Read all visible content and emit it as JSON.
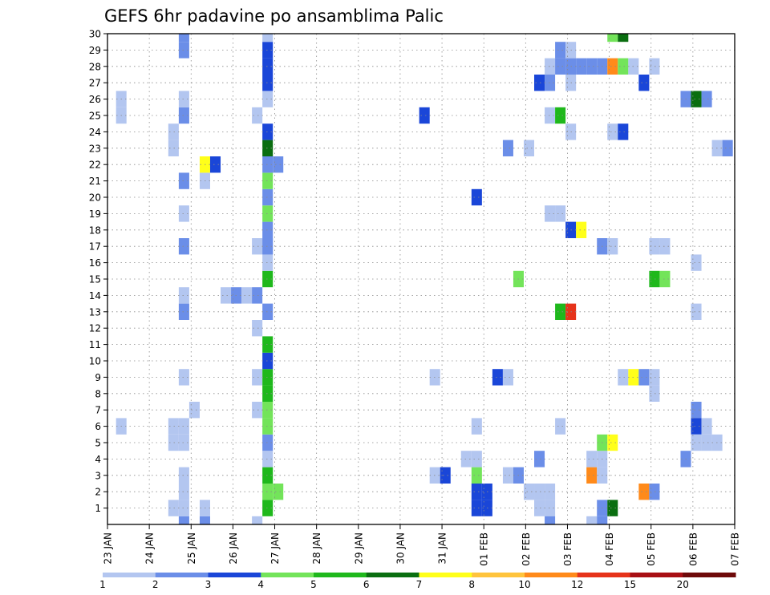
{
  "chart_data": {
    "type": "heatmap",
    "title": "GEFS 6hr padavine po ansamblima Palic",
    "x_tick_labels": [
      "23 JAN",
      "24 JAN",
      "25 JAN",
      "26 JAN",
      "27 JAN",
      "28 JAN",
      "29 JAN",
      "30 JAN",
      "31 JAN",
      "01 FEB",
      "02 FEB",
      "03 FEB",
      "04 FEB",
      "05 FEB",
      "06 FEB",
      "07 FEB"
    ],
    "x_range_days": [
      0,
      15
    ],
    "y_tick_labels": [
      "1",
      "2",
      "3",
      "4",
      "5",
      "6",
      "7",
      "8",
      "9",
      "10",
      "11",
      "12",
      "13",
      "14",
      "15",
      "16",
      "17",
      "18",
      "19",
      "20",
      "21",
      "22",
      "23",
      "24",
      "25",
      "26",
      "27",
      "28",
      "29",
      "30"
    ],
    "y_range": [
      0,
      30
    ],
    "grid": true,
    "colorbar": {
      "levels": [
        "1",
        "2",
        "3",
        "4",
        "5",
        "6",
        "7",
        "8",
        "10",
        "12",
        "15",
        "20"
      ],
      "colors": [
        "#b3c6f0",
        "#6b8ee8",
        "#1a46d8",
        "#73e45a",
        "#1fb81c",
        "#0a6e10",
        "#ffff1a",
        "#ffc43d",
        "#ff8a1a",
        "#e6331a",
        "#a80f14",
        "#6e0a0a"
      ]
    },
    "cells": [
      {
        "d": 1.83,
        "m": 0,
        "c": 2
      },
      {
        "d": 1.83,
        "m": 1,
        "c": 1
      },
      {
        "d": 1.83,
        "m": 2,
        "c": 1
      },
      {
        "d": 1.83,
        "m": 3,
        "c": 1
      },
      {
        "d": 1.83,
        "m": 5,
        "c": 1
      },
      {
        "d": 1.83,
        "m": 6,
        "c": 1
      },
      {
        "d": 1.83,
        "m": 9,
        "c": 1
      },
      {
        "d": 1.83,
        "m": 13,
        "c": 2
      },
      {
        "d": 1.83,
        "m": 14,
        "c": 1
      },
      {
        "d": 1.83,
        "m": 17,
        "c": 2
      },
      {
        "d": 1.83,
        "m": 19,
        "c": 1
      },
      {
        "d": 1.83,
        "m": 21,
        "c": 2
      },
      {
        "d": 1.83,
        "m": 25,
        "c": 2
      },
      {
        "d": 1.83,
        "m": 26,
        "c": 1
      },
      {
        "d": 1.83,
        "m": 29,
        "c": 2
      },
      {
        "d": 1.83,
        "m": 30,
        "c": 2
      },
      {
        "d": 1.58,
        "m": 1,
        "c": 1
      },
      {
        "d": 1.58,
        "m": 5,
        "c": 1
      },
      {
        "d": 1.58,
        "m": 6,
        "c": 1
      },
      {
        "d": 1.58,
        "m": 23,
        "c": 1
      },
      {
        "d": 1.58,
        "m": 24,
        "c": 1
      },
      {
        "d": 0.33,
        "m": 6,
        "c": 1
      },
      {
        "d": 0.33,
        "m": 25,
        "c": 1
      },
      {
        "d": 0.33,
        "m": 26,
        "c": 1
      },
      {
        "d": 2.08,
        "m": 7,
        "c": 1
      },
      {
        "d": 2.33,
        "m": 0,
        "c": 2
      },
      {
        "d": 2.33,
        "m": 1,
        "c": 1
      },
      {
        "d": 2.33,
        "m": 21,
        "c": 1
      },
      {
        "d": 2.33,
        "m": 22,
        "c": 7
      },
      {
        "d": 2.58,
        "m": 22,
        "c": 3
      },
      {
        "d": 2.83,
        "m": 14,
        "c": 1
      },
      {
        "d": 3.08,
        "m": 14,
        "c": 2
      },
      {
        "d": 3.33,
        "m": 14,
        "c": 1
      },
      {
        "d": 3.58,
        "m": 14,
        "c": 2
      },
      {
        "d": 3.58,
        "m": 0,
        "c": 1
      },
      {
        "d": 3.58,
        "m": 7,
        "c": 1
      },
      {
        "d": 3.58,
        "m": 9,
        "c": 1
      },
      {
        "d": 3.58,
        "m": 12,
        "c": 1
      },
      {
        "d": 3.58,
        "m": 17,
        "c": 1
      },
      {
        "d": 3.58,
        "m": 25,
        "c": 1
      },
      {
        "d": 3.83,
        "m": 17,
        "c": 1
      },
      {
        "d": 4.08,
        "m": 22,
        "c": 2
      },
      {
        "d": 3.83,
        "m": 1,
        "c": 5
      },
      {
        "d": 3.83,
        "m": 2,
        "c": 4
      },
      {
        "d": 3.83,
        "m": 3,
        "c": 5
      },
      {
        "d": 3.83,
        "m": 4,
        "c": 1
      },
      {
        "d": 3.83,
        "m": 5,
        "c": 2
      },
      {
        "d": 3.83,
        "m": 6,
        "c": 4
      },
      {
        "d": 3.83,
        "m": 7,
        "c": 4
      },
      {
        "d": 3.83,
        "m": 8,
        "c": 5
      },
      {
        "d": 3.83,
        "m": 9,
        "c": 5
      },
      {
        "d": 3.83,
        "m": 10,
        "c": 3
      },
      {
        "d": 3.83,
        "m": 11,
        "c": 5
      },
      {
        "d": 3.83,
        "m": 13,
        "c": 2
      },
      {
        "d": 3.83,
        "m": 15,
        "c": 5
      },
      {
        "d": 3.83,
        "m": 16,
        "c": 1
      },
      {
        "d": 3.83,
        "m": 17,
        "c": 2
      },
      {
        "d": 3.83,
        "m": 18,
        "c": 2
      },
      {
        "d": 3.83,
        "m": 19,
        "c": 4
      },
      {
        "d": 3.83,
        "m": 20,
        "c": 2
      },
      {
        "d": 3.83,
        "m": 21,
        "c": 4
      },
      {
        "d": 3.83,
        "m": 22,
        "c": 2
      },
      {
        "d": 3.83,
        "m": 23,
        "c": 6
      },
      {
        "d": 3.83,
        "m": 24,
        "c": 3
      },
      {
        "d": 3.83,
        "m": 26,
        "c": 1
      },
      {
        "d": 3.83,
        "m": 27,
        "c": 3
      },
      {
        "d": 3.83,
        "m": 28,
        "c": 3
      },
      {
        "d": 3.83,
        "m": 29,
        "c": 3
      },
      {
        "d": 3.83,
        "m": 30,
        "c": 1
      },
      {
        "d": 4.08,
        "m": 2,
        "c": 4
      },
      {
        "d": 7.83,
        "m": 9,
        "c": 1
      },
      {
        "d": 7.83,
        "m": 3,
        "c": 1
      },
      {
        "d": 8.08,
        "m": 3,
        "c": 3
      },
      {
        "d": 7.58,
        "m": 25,
        "c": 3
      },
      {
        "d": 8.58,
        "m": 4,
        "c": 1
      },
      {
        "d": 8.83,
        "m": 1,
        "c": 3
      },
      {
        "d": 8.83,
        "m": 2,
        "c": 3
      },
      {
        "d": 8.83,
        "m": 3,
        "c": 4
      },
      {
        "d": 8.83,
        "m": 6,
        "c": 1
      },
      {
        "d": 8.83,
        "m": 4,
        "c": 1
      },
      {
        "d": 8.83,
        "m": 20,
        "c": 3
      },
      {
        "d": 9.08,
        "m": 1,
        "c": 3
      },
      {
        "d": 9.08,
        "m": 2,
        "c": 3
      },
      {
        "d": 9.33,
        "m": 9,
        "c": 3
      },
      {
        "d": 9.58,
        "m": 9,
        "c": 1
      },
      {
        "d": 9.58,
        "m": 3,
        "c": 1
      },
      {
        "d": 9.83,
        "m": 3,
        "c": 2
      },
      {
        "d": 9.83,
        "m": 15,
        "c": 4
      },
      {
        "d": 9.58,
        "m": 23,
        "c": 2
      },
      {
        "d": 10.08,
        "m": 23,
        "c": 1
      },
      {
        "d": 10.08,
        "m": 2,
        "c": 1
      },
      {
        "d": 10.33,
        "m": 2,
        "c": 1
      },
      {
        "d": 10.58,
        "m": 2,
        "c": 1
      },
      {
        "d": 10.33,
        "m": 1,
        "c": 1
      },
      {
        "d": 10.58,
        "m": 1,
        "c": 1
      },
      {
        "d": 10.58,
        "m": 0,
        "c": 2
      },
      {
        "d": 10.33,
        "m": 4,
        "c": 2
      },
      {
        "d": 10.58,
        "m": 19,
        "c": 1
      },
      {
        "d": 10.83,
        "m": 19,
        "c": 1
      },
      {
        "d": 10.58,
        "m": 25,
        "c": 1
      },
      {
        "d": 10.83,
        "m": 25,
        "c": 5
      },
      {
        "d": 10.83,
        "m": 6,
        "c": 1
      },
      {
        "d": 10.83,
        "m": 13,
        "c": 5
      },
      {
        "d": 11.08,
        "m": 13,
        "c": 10
      },
      {
        "d": 10.33,
        "m": 27,
        "c": 3
      },
      {
        "d": 10.58,
        "m": 27,
        "c": 2
      },
      {
        "d": 11.08,
        "m": 27,
        "c": 1
      },
      {
        "d": 10.58,
        "m": 28,
        "c": 1
      },
      {
        "d": 10.83,
        "m": 28,
        "c": 2
      },
      {
        "d": 11.08,
        "m": 28,
        "c": 2
      },
      {
        "d": 11.33,
        "m": 28,
        "c": 2
      },
      {
        "d": 11.58,
        "m": 28,
        "c": 2
      },
      {
        "d": 11.83,
        "m": 28,
        "c": 2
      },
      {
        "d": 12.08,
        "m": 28,
        "c": 9
      },
      {
        "d": 12.33,
        "m": 28,
        "c": 4
      },
      {
        "d": 12.58,
        "m": 28,
        "c": 1
      },
      {
        "d": 13.08,
        "m": 28,
        "c": 1
      },
      {
        "d": 10.83,
        "m": 29,
        "c": 2
      },
      {
        "d": 11.08,
        "m": 29,
        "c": 1
      },
      {
        "d": 11.08,
        "m": 24,
        "c": 1
      },
      {
        "d": 11.08,
        "m": 18,
        "c": 3
      },
      {
        "d": 11.33,
        "m": 18,
        "c": 7
      },
      {
        "d": 11.58,
        "m": 0,
        "c": 1
      },
      {
        "d": 11.83,
        "m": 0,
        "c": 2
      },
      {
        "d": 11.83,
        "m": 1,
        "c": 2
      },
      {
        "d": 12.08,
        "m": 1,
        "c": 6
      },
      {
        "d": 11.58,
        "m": 3,
        "c": 9
      },
      {
        "d": 11.83,
        "m": 3,
        "c": 1
      },
      {
        "d": 11.58,
        "m": 4,
        "c": 1
      },
      {
        "d": 11.83,
        "m": 4,
        "c": 1
      },
      {
        "d": 11.83,
        "m": 5,
        "c": 4
      },
      {
        "d": 12.08,
        "m": 5,
        "c": 7
      },
      {
        "d": 11.83,
        "m": 17,
        "c": 2
      },
      {
        "d": 12.08,
        "m": 17,
        "c": 1
      },
      {
        "d": 12.08,
        "m": 24,
        "c": 1
      },
      {
        "d": 12.33,
        "m": 24,
        "c": 3
      },
      {
        "d": 12.08,
        "m": 30,
        "c": 4
      },
      {
        "d": 12.33,
        "m": 30,
        "c": 6
      },
      {
        "d": 12.33,
        "m": 9,
        "c": 1
      },
      {
        "d": 12.58,
        "m": 9,
        "c": 7
      },
      {
        "d": 12.83,
        "m": 9,
        "c": 2
      },
      {
        "d": 13.08,
        "m": 9,
        "c": 1
      },
      {
        "d": 13.08,
        "m": 8,
        "c": 1
      },
      {
        "d": 12.83,
        "m": 27,
        "c": 3
      },
      {
        "d": 12.83,
        "m": 2,
        "c": 9
      },
      {
        "d": 13.08,
        "m": 2,
        "c": 2
      },
      {
        "d": 13.08,
        "m": 15,
        "c": 5
      },
      {
        "d": 13.33,
        "m": 15,
        "c": 4
      },
      {
        "d": 13.08,
        "m": 17,
        "c": 1
      },
      {
        "d": 13.33,
        "m": 17,
        "c": 1
      },
      {
        "d": 13.83,
        "m": 4,
        "c": 2
      },
      {
        "d": 13.83,
        "m": 26,
        "c": 2
      },
      {
        "d": 14.08,
        "m": 26,
        "c": 6
      },
      {
        "d": 14.33,
        "m": 26,
        "c": 2
      },
      {
        "d": 14.08,
        "m": 16,
        "c": 1
      },
      {
        "d": 14.08,
        "m": 13,
        "c": 1
      },
      {
        "d": 14.08,
        "m": 7,
        "c": 2
      },
      {
        "d": 14.08,
        "m": 6,
        "c": 3
      },
      {
        "d": 14.33,
        "m": 6,
        "c": 1
      },
      {
        "d": 14.08,
        "m": 5,
        "c": 1
      },
      {
        "d": 14.33,
        "m": 5,
        "c": 1
      },
      {
        "d": 14.58,
        "m": 5,
        "c": 1
      },
      {
        "d": 14.58,
        "m": 23,
        "c": 1
      },
      {
        "d": 14.83,
        "m": 23,
        "c": 2
      }
    ]
  }
}
